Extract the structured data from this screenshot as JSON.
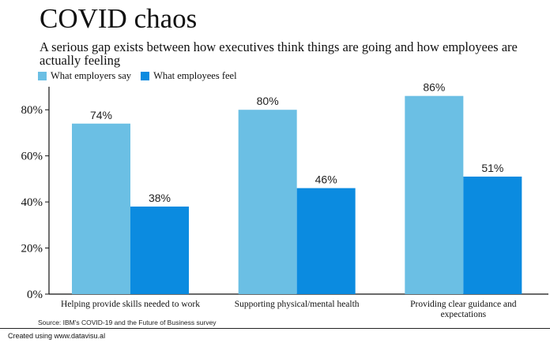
{
  "chart_data": {
    "type": "bar",
    "title": "COVID chaos",
    "subtitle": "A serious gap exists between how executives think things are going and how employees are actually feeling",
    "categories": [
      [
        "Helping provide skills needed to work"
      ],
      [
        "Supporting physical/mental health"
      ],
      [
        "Providing clear guidance and",
        "expectations"
      ]
    ],
    "series": [
      {
        "name": "What employers say",
        "color": "#6bbfe4",
        "values": [
          74,
          80,
          86
        ],
        "labels": [
          "74%",
          "80%",
          "86%"
        ]
      },
      {
        "name": "What employees feel",
        "color": "#0b8be0",
        "values": [
          38,
          46,
          51
        ],
        "labels": [
          "38%",
          "46%",
          "51%"
        ]
      }
    ],
    "ylim": [
      0,
      90
    ],
    "yticks": [
      0,
      20,
      40,
      60,
      80
    ],
    "ytick_labels": [
      "0%",
      "20%",
      "40%",
      "60%",
      "80%"
    ],
    "grid": false,
    "legend_position": "top-left"
  },
  "source": "Source: IBM's COVID-19 and the Future of Business survey",
  "credit": "Created using www.datavisu.al"
}
